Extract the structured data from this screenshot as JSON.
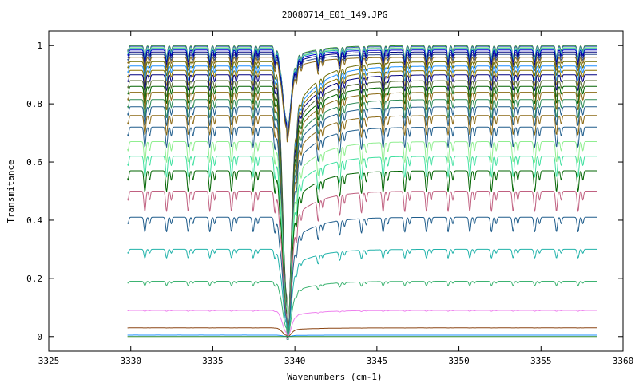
{
  "chart_data": {
    "type": "line",
    "title": "20080714_E01_149.JPG",
    "xlabel": "Wavenumbers (cm-1)",
    "ylabel": "Transmitance",
    "xlim": [
      3325,
      3360
    ],
    "ylim": [
      -0.05,
      1.05
    ],
    "x_ticks": [
      "3325",
      "3330",
      "3335",
      "3340",
      "3345",
      "3350",
      "3355",
      "3360"
    ],
    "y_ticks": [
      "0",
      "0.2",
      "0.4",
      "0.6",
      "0.8",
      "1"
    ],
    "x_tick_values": [
      3325,
      3330,
      3335,
      3340,
      3345,
      3350,
      3355,
      3360
    ],
    "y_tick_values": [
      0,
      0.2,
      0.4,
      0.6,
      0.8,
      1
    ],
    "grid": false,
    "legend": "none",
    "x_range_of_data": [
      3329.8,
      3358.4
    ],
    "strong_band_center": 3339.5,
    "line_spacing": 1.32,
    "series": [
      {
        "baseline": 1.0,
        "color": "#2e8b2e"
      },
      {
        "baseline": 0.997,
        "color": "#4060c0"
      },
      {
        "baseline": 0.993,
        "color": "#90ee90"
      },
      {
        "baseline": 0.99,
        "color": "#20b2aa"
      },
      {
        "baseline": 0.985,
        "color": "#0000cd"
      },
      {
        "baseline": 0.978,
        "color": "#000080"
      },
      {
        "baseline": 0.97,
        "color": "#2f4f8f"
      },
      {
        "baseline": 0.96,
        "color": "#8b6914"
      },
      {
        "baseline": 0.945,
        "color": "#6b6b00"
      },
      {
        "baseline": 0.93,
        "color": "#1e90ff"
      },
      {
        "baseline": 0.915,
        "color": "#8b7500"
      },
      {
        "baseline": 0.9,
        "color": "#000080"
      },
      {
        "baseline": 0.88,
        "color": "#556b2f"
      },
      {
        "baseline": 0.86,
        "color": "#006400"
      },
      {
        "baseline": 0.84,
        "color": "#8b6914"
      },
      {
        "baseline": 0.815,
        "color": "#2e8b57"
      },
      {
        "baseline": 0.79,
        "color": "#1e5c8b"
      },
      {
        "baseline": 0.76,
        "color": "#8b6914"
      },
      {
        "baseline": 0.72,
        "color": "#1e5c8b"
      },
      {
        "baseline": 0.67,
        "color": "#90ee90"
      },
      {
        "baseline": 0.62,
        "color": "#40e0a0"
      },
      {
        "baseline": 0.57,
        "color": "#006400"
      },
      {
        "baseline": 0.5,
        "color": "#c06080"
      },
      {
        "baseline": 0.41,
        "color": "#1e5c8b"
      },
      {
        "baseline": 0.3,
        "color": "#20b2aa"
      },
      {
        "baseline": 0.19,
        "color": "#3cb371"
      },
      {
        "baseline": 0.09,
        "color": "#ee82ee"
      },
      {
        "baseline": 0.03,
        "color": "#8b4513"
      },
      {
        "baseline": 0.005,
        "color": "#1e90ff"
      },
      {
        "baseline": 0.0,
        "color": "#2e8b2e"
      }
    ]
  }
}
